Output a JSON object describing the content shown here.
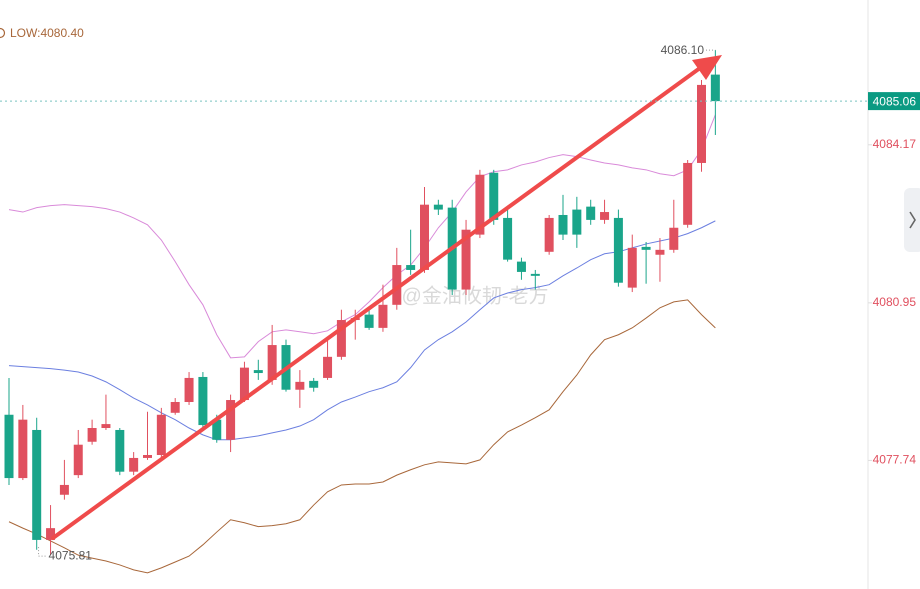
{
  "chart_data": {
    "type": "candlestick",
    "low_text": "LOW:4080.40",
    "watermark": "@金油攸韧-老方",
    "categories": [
      null,
      null,
      null,
      null,
      null,
      null,
      null,
      null,
      null,
      null,
      null,
      null,
      null,
      null,
      null,
      null,
      null,
      null,
      null,
      null,
      null,
      null,
      null,
      null,
      null,
      null,
      null,
      null,
      null,
      null,
      null,
      null,
      null,
      null,
      null,
      null,
      null,
      null,
      null,
      null,
      null,
      null,
      null,
      null,
      null,
      null,
      null,
      null,
      null,
      null,
      null,
      null
    ],
    "open": [
      4078.67,
      4077.38,
      4078.36,
      4076.12,
      4077.04,
      4077.44,
      4078.12,
      4078.4,
      4078.36,
      4077.51,
      4077.79,
      4077.85,
      4078.71,
      4078.93,
      4079.44,
      4078.57,
      4078.16,
      4078.97,
      4079.58,
      4079.38,
      4080.09,
      4079.18,
      4079.36,
      4079.42,
      4079.85,
      4080.6,
      4080.71,
      4080.44,
      4080.91,
      4081.72,
      4081.62,
      4082.95,
      4082.89,
      4081.22,
      4082.34,
      4083.6,
      4082.68,
      4081.79,
      4081.54,
      4081.99,
      4082.74,
      4082.85,
      4082.91,
      4082.64,
      4082.68,
      4081.26,
      4082.09,
      4081.93,
      4082.03,
      4082.54,
      4083.8,
      4085.6
    ],
    "high": [
      4079.42,
      4078.87,
      4078.61,
      4076.83,
      4077.75,
      4078.36,
      4078.57,
      4079.08,
      4078.4,
      4077.91,
      4078.73,
      4078.81,
      4079.01,
      4079.54,
      4079.54,
      4078.67,
      4079.08,
      4079.75,
      4079.79,
      4080.5,
      4080.2,
      4079.58,
      4079.42,
      4080.2,
      4080.81,
      4080.81,
      4080.85,
      4081.32,
      4082.07,
      4082.44,
      4083.31,
      4083.05,
      4083.05,
      4082.64,
      4083.66,
      4083.66,
      4082.85,
      4081.87,
      4081.62,
      4082.74,
      4083.15,
      4083.11,
      4083.05,
      4083.05,
      4082.85,
      4082.34,
      4082.19,
      4082.27,
      4083.05,
      4083.86,
      4085.49,
      4086.1
    ],
    "low": [
      4077.24,
      4077.34,
      4075.92,
      4075.81,
      4076.94,
      4077.38,
      4078.06,
      4078.36,
      4077.44,
      4077.44,
      4077.75,
      4077.79,
      4078.67,
      4078.87,
      4078.4,
      4078.1,
      4077.91,
      4078.93,
      4079.38,
      4079.28,
      4079.14,
      4078.81,
      4079.14,
      4079.38,
      4079.79,
      4080.2,
      4080.4,
      4080.36,
      4080.81,
      4081.52,
      4081.56,
      4082.74,
      4081.11,
      4081.11,
      4082.27,
      4082.54,
      4081.79,
      4081.42,
      4081.22,
      4081.93,
      4082.23,
      4082.07,
      4082.54,
      4082.56,
      4081.28,
      4081.17,
      4081.34,
      4081.38,
      4081.97,
      4082.48,
      4083.62,
      4084.37
    ],
    "close": [
      4077.38,
      4078.57,
      4076.12,
      4076.36,
      4077.24,
      4078.06,
      4078.4,
      4078.48,
      4077.51,
      4077.79,
      4077.85,
      4078.67,
      4078.93,
      4079.42,
      4078.46,
      4078.16,
      4078.97,
      4079.63,
      4079.52,
      4080.09,
      4079.18,
      4079.34,
      4079.22,
      4079.85,
      4080.6,
      4080.64,
      4080.44,
      4080.91,
      4081.72,
      4081.62,
      4082.95,
      4082.85,
      4081.22,
      4082.44,
      4083.56,
      4082.64,
      4081.83,
      4081.58,
      4081.5,
      4082.68,
      4082.34,
      4082.34,
      4082.64,
      4082.8,
      4081.36,
      4082.07,
      4082.03,
      4082.03,
      4082.48,
      4083.8,
      4085.39,
      4085.06
    ],
    "up_color": "#e0505f",
    "down_color": "#1aa58a",
    "lines": [
      {
        "color": "#d98ad9",
        "values": [
          4082.85,
          4082.8,
          4082.89,
          4082.93,
          4082.95,
          4082.93,
          4082.91,
          4082.87,
          4082.8,
          4082.68,
          4082.54,
          4082.23,
          4081.79,
          4081.32,
          4080.91,
          4080.3,
          4079.83,
          4079.85,
          4080.16,
          4080.36,
          4080.4,
          4080.36,
          4080.32,
          4080.38,
          4080.56,
          4080.71,
          4080.97,
          4081.26,
          4081.52,
          4081.72,
          4082.07,
          4082.48,
          4082.8,
          4083.21,
          4083.52,
          4083.62,
          4083.66,
          4083.76,
          4083.82,
          4083.91,
          4083.97,
          4083.93,
          4083.86,
          4083.8,
          4083.76,
          4083.7,
          4083.66,
          4083.58,
          4083.54,
          4083.66,
          4084.07,
          4084.78
        ]
      },
      {
        "color": "#6b7fe0",
        "values": [
          4079.67,
          4079.65,
          4079.63,
          4079.61,
          4079.58,
          4079.54,
          4079.46,
          4079.34,
          4079.18,
          4079.01,
          4078.87,
          4078.71,
          4078.57,
          4078.4,
          4078.26,
          4078.16,
          4078.16,
          4078.2,
          4078.24,
          4078.3,
          4078.36,
          4078.44,
          4078.57,
          4078.77,
          4078.93,
          4079.03,
          4079.14,
          4079.22,
          4079.34,
          4079.63,
          4079.99,
          4080.2,
          4080.36,
          4080.56,
          4080.81,
          4081.05,
          4081.15,
          4081.22,
          4081.26,
          4081.32,
          4081.5,
          4081.66,
          4081.83,
          4081.95,
          4081.99,
          4082.07,
          4082.15,
          4082.21,
          4082.27,
          4082.36,
          4082.48,
          4082.62
        ]
      },
      {
        "color": "#a8673a",
        "values": [
          4076.49,
          4076.36,
          4076.24,
          4076.1,
          4075.96,
          4075.81,
          4075.75,
          4075.69,
          4075.61,
          4075.51,
          4075.45,
          4075.55,
          4075.67,
          4075.79,
          4076.02,
          4076.28,
          4076.53,
          4076.47,
          4076.39,
          4076.41,
          4076.45,
          4076.53,
          4076.83,
          4077.1,
          4077.24,
          4077.26,
          4077.26,
          4077.3,
          4077.44,
          4077.55,
          4077.65,
          4077.71,
          4077.69,
          4077.67,
          4077.75,
          4078.06,
          4078.32,
          4078.46,
          4078.61,
          4078.77,
          4079.14,
          4079.48,
          4079.89,
          4080.2,
          4080.3,
          4080.44,
          4080.64,
          4080.85,
          4080.97,
          4081.01,
          4080.71,
          4080.44
        ]
      }
    ],
    "ylim": [
      4075.12,
      4087.12
    ],
    "yticks": [
      4084.17,
      4080.95,
      4077.74
    ],
    "tick_color": "#e0505f",
    "last_price": 4085.06,
    "last_price_color": "#0a9a82",
    "high_annotation": {
      "value": 4086.1,
      "label": "4086.10"
    },
    "low_annotation": 4075.81
  }
}
